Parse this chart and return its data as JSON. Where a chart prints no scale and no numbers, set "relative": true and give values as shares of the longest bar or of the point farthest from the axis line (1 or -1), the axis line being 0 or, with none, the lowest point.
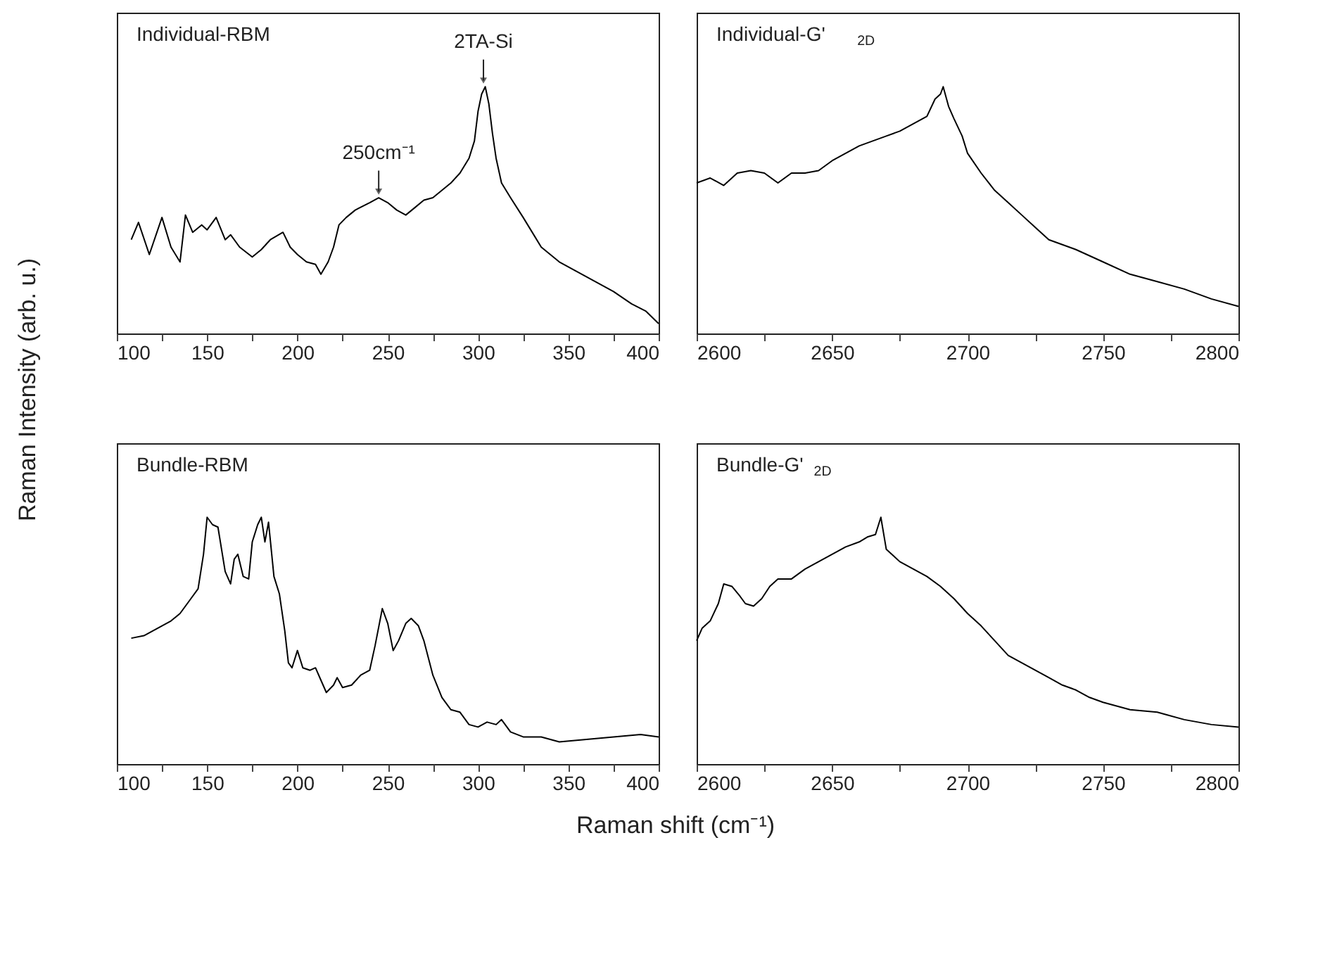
{
  "chart_data": [
    {
      "type": "line",
      "title": "Individual-RBM",
      "ylabel": "Raman Intensity (arb. u.)",
      "relative": true,
      "tick_labels": "x",
      "xlim": [
        100,
        400
      ],
      "xticks": [
        100,
        {
          "value": 125,
          "label": null
        },
        150,
        {
          "value": 175,
          "label": null
        },
        200,
        {
          "value": 225,
          "label": null
        },
        250,
        {
          "value": 275,
          "label": null
        },
        300,
        {
          "value": 325,
          "label": null
        },
        350,
        {
          "value": 375,
          "label": null
        },
        400
      ],
      "annotations": [
        {
          "text": "250cm⁻¹",
          "x": 245,
          "y": 0.55
        },
        {
          "text": "2TA-Si",
          "x": 303,
          "y": 1.0
        }
      ],
      "series": [
        {
          "color": "#000000",
          "x": [
            108,
            112,
            118,
            125,
            130,
            135,
            138,
            142,
            147,
            150,
            155,
            160,
            163,
            168,
            175,
            180,
            185,
            192,
            196,
            200,
            205,
            210,
            213,
            217,
            220,
            223,
            227,
            232,
            240,
            245,
            250,
            255,
            260,
            265,
            270,
            275,
            280,
            285,
            290,
            295,
            298,
            300,
            302,
            304,
            306,
            308,
            310,
            313,
            318,
            325,
            335,
            345,
            355,
            365,
            375,
            385,
            393,
            400
          ],
          "values": [
            0.38,
            0.45,
            0.32,
            0.47,
            0.35,
            0.29,
            0.48,
            0.41,
            0.44,
            0.42,
            0.47,
            0.38,
            0.4,
            0.35,
            0.31,
            0.34,
            0.38,
            0.41,
            0.35,
            0.32,
            0.29,
            0.28,
            0.24,
            0.29,
            0.35,
            0.44,
            0.47,
            0.5,
            0.53,
            0.55,
            0.53,
            0.5,
            0.48,
            0.51,
            0.54,
            0.55,
            0.58,
            0.61,
            0.65,
            0.71,
            0.78,
            0.9,
            0.97,
            1.0,
            0.93,
            0.81,
            0.71,
            0.61,
            0.55,
            0.47,
            0.35,
            0.29,
            0.25,
            0.21,
            0.17,
            0.12,
            0.09,
            0.04
          ]
        }
      ]
    },
    {
      "type": "line",
      "title": "Individual-G'$_{2D}$",
      "relative": true,
      "tick_labels": "x",
      "xlim": [
        2600,
        2800
      ],
      "xticks": [
        2600,
        {
          "value": 2625,
          "label": null
        },
        2650,
        {
          "value": 2675,
          "label": null
        },
        2700,
        {
          "value": 2725,
          "label": null
        },
        2750,
        {
          "value": 2775,
          "label": null
        },
        2800
      ],
      "series": [
        {
          "color": "#000000",
          "x": [
            2600,
            2605,
            2610,
            2615,
            2620,
            2625,
            2630,
            2635,
            2640,
            2645,
            2650,
            2655,
            2660,
            2665,
            2670,
            2675,
            2680,
            2685,
            2688,
            2690,
            2691,
            2693,
            2695,
            2698,
            2700,
            2705,
            2710,
            2715,
            2720,
            2725,
            2730,
            2740,
            2750,
            2760,
            2770,
            2780,
            2790,
            2800
          ],
          "values": [
            0.61,
            0.63,
            0.6,
            0.65,
            0.66,
            0.65,
            0.61,
            0.65,
            0.65,
            0.66,
            0.7,
            0.73,
            0.76,
            0.78,
            0.8,
            0.82,
            0.85,
            0.88,
            0.95,
            0.97,
            1.0,
            0.92,
            0.87,
            0.8,
            0.73,
            0.65,
            0.58,
            0.53,
            0.48,
            0.43,
            0.38,
            0.34,
            0.29,
            0.24,
            0.21,
            0.18,
            0.14,
            0.11
          ]
        }
      ]
    },
    {
      "type": "line",
      "title": "Bundle-RBM",
      "xlabel": "Raman shift (cm⁻¹)",
      "relative": true,
      "tick_labels": "x",
      "xlim": [
        100,
        400
      ],
      "xticks": [
        100,
        {
          "value": 125,
          "label": null
        },
        150,
        {
          "value": 175,
          "label": null
        },
        200,
        {
          "value": 225,
          "label": null
        },
        250,
        {
          "value": 275,
          "label": null
        },
        300,
        {
          "value": 325,
          "label": null
        },
        350,
        {
          "value": 375,
          "label": null
        },
        400
      ],
      "series": [
        {
          "color": "#000000",
          "x": [
            108,
            115,
            120,
            125,
            130,
            135,
            140,
            145,
            148,
            150,
            153,
            156,
            160,
            163,
            165,
            167,
            170,
            173,
            175,
            178,
            180,
            182,
            184,
            187,
            190,
            193,
            195,
            197,
            200,
            203,
            207,
            210,
            213,
            216,
            220,
            222,
            225,
            230,
            235,
            240,
            243,
            247,
            250,
            253,
            256,
            260,
            263,
            267,
            270,
            275,
            280,
            285,
            290,
            295,
            300,
            305,
            310,
            313,
            318,
            325,
            335,
            345,
            360,
            375,
            390,
            400
          ],
          "values": [
            0.51,
            0.52,
            0.54,
            0.56,
            0.58,
            0.61,
            0.66,
            0.71,
            0.85,
            1.0,
            0.97,
            0.96,
            0.78,
            0.73,
            0.83,
            0.85,
            0.76,
            0.75,
            0.9,
            0.97,
            1.0,
            0.9,
            0.98,
            0.76,
            0.69,
            0.54,
            0.41,
            0.39,
            0.46,
            0.39,
            0.38,
            0.39,
            0.34,
            0.29,
            0.32,
            0.35,
            0.31,
            0.32,
            0.36,
            0.38,
            0.48,
            0.63,
            0.57,
            0.46,
            0.5,
            0.57,
            0.59,
            0.56,
            0.5,
            0.36,
            0.27,
            0.22,
            0.21,
            0.16,
            0.15,
            0.17,
            0.16,
            0.18,
            0.13,
            0.11,
            0.11,
            0.09,
            0.1,
            0.11,
            0.12,
            0.11
          ]
        }
      ]
    },
    {
      "type": "line",
      "title": "Bundle-G'$_{2D}$",
      "relative": true,
      "tick_labels": "x",
      "xlim": [
        2600,
        2800
      ],
      "xticks": [
        2600,
        {
          "value": 2625,
          "label": null
        },
        2650,
        {
          "value": 2675,
          "label": null
        },
        2700,
        {
          "value": 2725,
          "label": null
        },
        2750,
        {
          "value": 2775,
          "label": null
        },
        2800
      ],
      "series": [
        {
          "color": "#000000",
          "x": [
            2600,
            2602,
            2605,
            2608,
            2610,
            2613,
            2616,
            2618,
            2621,
            2624,
            2627,
            2630,
            2635,
            2640,
            2645,
            2650,
            2655,
            2660,
            2663,
            2666,
            2668,
            2670,
            2675,
            2680,
            2685,
            2690,
            2695,
            2700,
            2705,
            2710,
            2715,
            2720,
            2725,
            2730,
            2735,
            2740,
            2745,
            2750,
            2760,
            2770,
            2780,
            2790,
            2800
          ],
          "values": [
            0.5,
            0.55,
            0.58,
            0.65,
            0.73,
            0.72,
            0.68,
            0.65,
            0.64,
            0.67,
            0.72,
            0.75,
            0.75,
            0.79,
            0.82,
            0.85,
            0.88,
            0.9,
            0.92,
            0.93,
            1.0,
            0.87,
            0.82,
            0.79,
            0.76,
            0.72,
            0.67,
            0.61,
            0.56,
            0.5,
            0.44,
            0.41,
            0.38,
            0.35,
            0.32,
            0.3,
            0.27,
            0.25,
            0.22,
            0.21,
            0.18,
            0.16,
            0.15
          ]
        }
      ]
    }
  ]
}
